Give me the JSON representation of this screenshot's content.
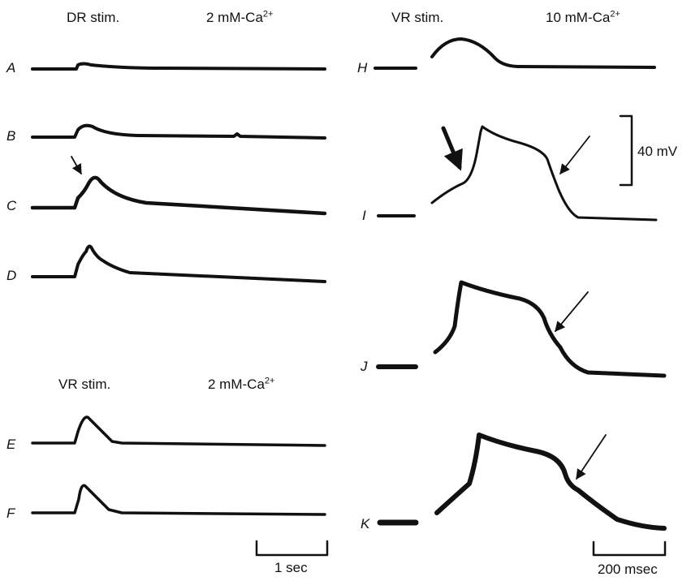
{
  "left_panel": {
    "top_header": {
      "stim": "DR stim.",
      "ca_prefix": "2 mM-Ca",
      "ca_sup": "2+"
    },
    "bottom_header": {
      "stim": "VR stim.",
      "ca_prefix": "2 mM-Ca",
      "ca_sup": "2+"
    },
    "traces": [
      "A",
      "B",
      "C",
      "D",
      "E",
      "F"
    ],
    "time_scale": "1 sec"
  },
  "right_panel": {
    "header": {
      "stim": "VR stim.",
      "ca_prefix": "10 mM-Ca",
      "ca_sup": "2+"
    },
    "traces": [
      "H",
      "I",
      "J",
      "K"
    ],
    "voltage_scale": "40 mV",
    "time_scale": "200 msec"
  },
  "colors": {
    "ink": "#111111",
    "background": "#ffffff"
  }
}
